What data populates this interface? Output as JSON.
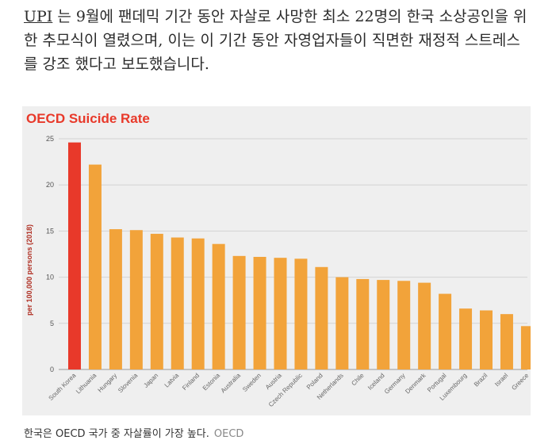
{
  "article": {
    "link_text": "UPI",
    "body_text": " 는 9월에 팬데믹 기간 동안 자살로 사망한 최소 22명의 한국 소상공인을 위한 추모식이 열렸으며, 이는 이 기간 동안 자영업자들이 직면한 재정적 스트레스를 강조 했다고 보도했습니다."
  },
  "caption": {
    "text": "한국은 OECD 국가 중 자살률이 가장 높다.",
    "credit": "OECD"
  },
  "colors": {
    "highlight": "#e8392a",
    "bar": "#f2a33a",
    "title": "#e8392a",
    "ylabel": "#b03024"
  },
  "chart_data": {
    "type": "bar",
    "title": "OECD Suicide Rate",
    "xlabel": "",
    "ylabel": "per 100,000 persons (2018)",
    "ylim": [
      0,
      25
    ],
    "yticks": [
      0,
      5,
      10,
      15,
      20,
      25
    ],
    "grid": true,
    "highlight_index": 0,
    "categories": [
      "South Korea",
      "Lithuania",
      "Hungary",
      "Slovenia",
      "Japan",
      "Latvia",
      "Finland",
      "Estonia",
      "Australia",
      "Sweden",
      "Austria",
      "Czech Republic",
      "Poland",
      "Netherlands",
      "Chile",
      "Iceland",
      "Germany",
      "Denmark",
      "Portugal",
      "Luxembourg",
      "Brazil",
      "Israel",
      "Greece"
    ],
    "values": [
      24.6,
      22.2,
      15.2,
      15.1,
      14.7,
      14.3,
      14.2,
      13.6,
      12.3,
      12.2,
      12.1,
      12.0,
      11.1,
      10.0,
      9.8,
      9.7,
      9.6,
      9.4,
      8.2,
      6.6,
      6.4,
      6.0,
      4.7
    ]
  }
}
